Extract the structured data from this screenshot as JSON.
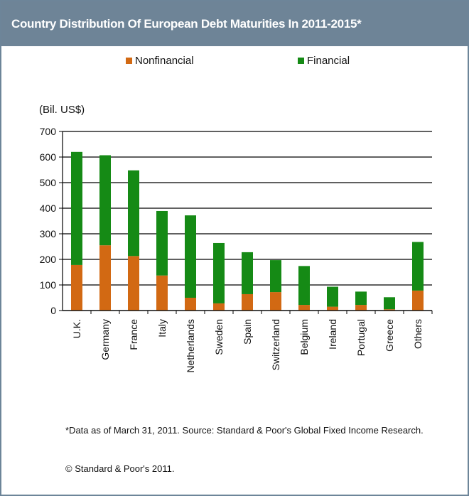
{
  "title": "Country Distribution Of European Debt Maturities In 2011-2015*",
  "colors": {
    "header_bg": "#6e8497",
    "nonfinancial": "#d26913",
    "financial": "#158a15"
  },
  "chart_data": {
    "type": "bar",
    "stacked": true,
    "title": "Country Distribution Of European Debt Maturities In 2011-2015*",
    "unit_label": "(Bil. US$)",
    "categories": [
      "U.K.",
      "Germany",
      "France",
      "Italy",
      "Netherlands",
      "Sweden",
      "Spain",
      "Switzerland",
      "Belgium",
      "Ireland",
      "Portugal",
      "Greece",
      "Others"
    ],
    "series": [
      {
        "name": "Nonfinancial",
        "color": "#d26913",
        "values": [
          178,
          255,
          213,
          137,
          50,
          28,
          64,
          72,
          22,
          15,
          22,
          5,
          78
        ]
      },
      {
        "name": "Financial",
        "color": "#158a15",
        "values": [
          442,
          352,
          335,
          252,
          322,
          236,
          164,
          125,
          152,
          78,
          52,
          47,
          190
        ]
      }
    ],
    "y_ticks": [
      0,
      100,
      200,
      300,
      400,
      500,
      600,
      700
    ],
    "ylim": [
      0,
      700
    ],
    "grid": true,
    "legend_position": "top"
  },
  "footnote": "*Data as of March 31, 2011. Source: Standard & Poor's Global Fixed Income Research.",
  "copyright": "© Standard & Poor's 2011."
}
